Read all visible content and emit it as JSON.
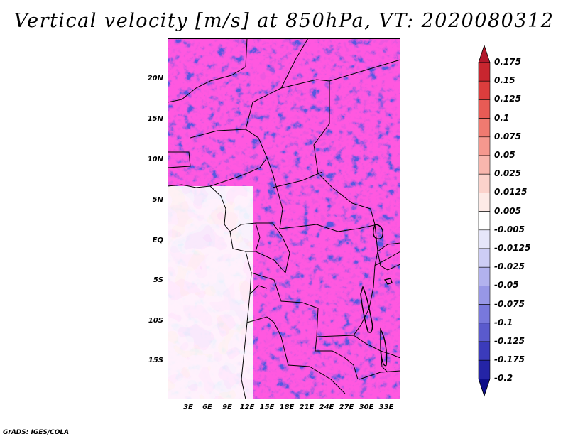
{
  "title": "Vertical velocity [m/s] at 850hPa, VT: 2020080312",
  "footer": "GrADS: IGES/COLA",
  "lat_ticks": [
    "20N",
    "15N",
    "10N",
    "5N",
    "EQ",
    "5S",
    "10S",
    "15S"
  ],
  "lon_ticks": [
    "3E",
    "6E",
    "9E",
    "12E",
    "15E",
    "18E",
    "21E",
    "24E",
    "27E",
    "30E",
    "33E"
  ],
  "colorbar": {
    "labels": [
      "0.175",
      "0.15",
      "0.125",
      "0.1",
      "0.075",
      "0.05",
      "0.025",
      "0.0125",
      "0.005",
      "-0.005",
      "-0.0125",
      "-0.025",
      "-0.05",
      "-0.075",
      "-0.1",
      "-0.125",
      "-0.175",
      "-0.2"
    ],
    "colors": [
      "#b2182b",
      "#c8262f",
      "#dc3d3d",
      "#e85b55",
      "#f07a70",
      "#f5988e",
      "#f8b6ad",
      "#fbd2cb",
      "#fdeae6",
      "#ffffff",
      "#e6e6fa",
      "#cdcdf5",
      "#b2b2ee",
      "#9797e6",
      "#7878dc",
      "#5a5acd",
      "#3b3bbb",
      "#2424a6",
      "#0d0d88"
    ]
  },
  "chart_data": {
    "type": "heatmap",
    "title": "Vertical velocity [m/s] at 850hPa, VT: 2020080312",
    "variable": "Vertical velocity",
    "units": "m/s",
    "level": "850hPa",
    "valid_time": "2020080312",
    "xlim": [
      0,
      35
    ],
    "ylim": [
      -20,
      24
    ],
    "x_ticks": [
      3,
      6,
      9,
      12,
      15,
      18,
      21,
      24,
      27,
      30,
      33
    ],
    "y_ticks": [
      20,
      15,
      10,
      5,
      0,
      -5,
      -10,
      -15
    ],
    "levels": [
      0.175,
      0.15,
      0.125,
      0.1,
      0.075,
      0.05,
      0.025,
      0.0125,
      0.005,
      -0.005,
      -0.0125,
      -0.025,
      -0.05,
      -0.075,
      -0.1,
      -0.125,
      -0.175,
      -0.2
    ]
  }
}
